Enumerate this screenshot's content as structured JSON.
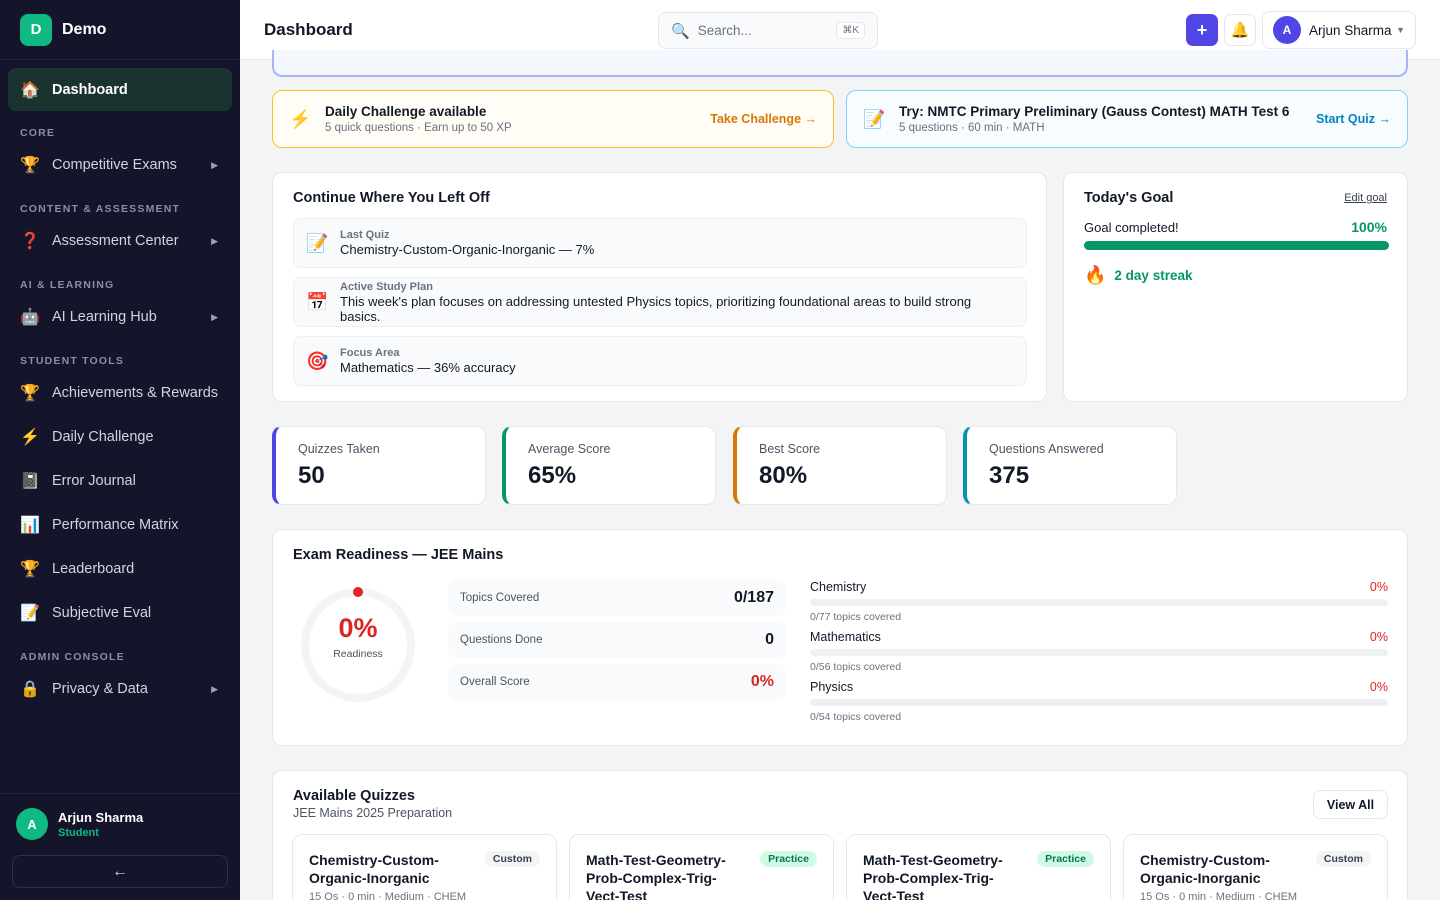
{
  "brand": {
    "logo_letter": "D",
    "name": "Demo"
  },
  "sidebar": {
    "active": {
      "icon": "home-icon",
      "label": "Dashboard"
    },
    "sections": [
      {
        "label": "CORE",
        "items": [
          {
            "icon": "trophy-icon",
            "label": "Competitive Exams",
            "expandable": true
          }
        ]
      },
      {
        "label": "CONTENT & ASSESSMENT",
        "items": [
          {
            "icon": "question-icon",
            "label": "Assessment Center",
            "expandable": true
          }
        ]
      },
      {
        "label": "AI & LEARNING",
        "items": [
          {
            "icon": "robot-icon",
            "label": "AI Learning Hub",
            "expandable": true
          }
        ]
      },
      {
        "label": "STUDENT TOOLS",
        "items": [
          {
            "icon": "trophy-icon",
            "label": "Achievements & Rewards"
          },
          {
            "icon": "lightning-icon",
            "label": "Daily Challenge"
          },
          {
            "icon": "notebook-icon",
            "label": "Error Journal"
          },
          {
            "icon": "bar-chart-icon",
            "label": "Performance Matrix"
          },
          {
            "icon": "trophy-icon",
            "label": "Leaderboard"
          },
          {
            "icon": "memo-icon",
            "label": "Subjective Eval"
          }
        ]
      },
      {
        "label": "ADMIN CONSOLE",
        "items": [
          {
            "icon": "lock-icon",
            "label": "Privacy & Data",
            "expandable": true
          }
        ]
      }
    ],
    "user": {
      "initial": "A",
      "name": "Arjun Sharma",
      "role": "Student"
    },
    "collapse_label": "←"
  },
  "header": {
    "title": "Dashboard",
    "search_placeholder": "Search...",
    "search_shortcut": "⌘K",
    "add_label": "+",
    "user_initial": "A",
    "user_name": "Arjun Sharma"
  },
  "cta": {
    "daily": {
      "title": "Daily Challenge available",
      "subtitle": "5 quick questions · Earn up to 50 XP",
      "action": "Take Challenge →"
    },
    "quiz": {
      "title": "Try: NMTC Primary Preliminary (Gauss Contest) MATH Test 6",
      "subtitle": "5 questions · 60 min · MATH",
      "action": "Start Quiz →"
    }
  },
  "resume": {
    "title": "Continue Where You Left Off",
    "items": [
      {
        "icon": "memo-icon",
        "label": "Last Quiz",
        "text": "Chemistry-Custom-Organic-Inorganic — 7%"
      },
      {
        "icon": "calendar-icon",
        "label": "Active Study Plan",
        "text": "This week's plan focuses on addressing untested Physics topics, prioritizing foundational areas to build strong basics."
      },
      {
        "icon": "target-icon",
        "label": "Focus Area",
        "text": "Mathematics — 36% accuracy"
      }
    ]
  },
  "goal": {
    "title": "Today's Goal",
    "edit_label": "Edit goal",
    "status": "Goal completed!",
    "percent_label": "100%",
    "progress": 1.0,
    "streak": "2 day streak"
  },
  "stats": [
    {
      "label": "Quizzes Taken",
      "value": "50",
      "color": "#4f46e5"
    },
    {
      "label": "Average Score",
      "value": "65%",
      "color": "#059669"
    },
    {
      "label": "Best Score",
      "value": "80%",
      "color": "#d97706"
    },
    {
      "label": "Questions Answered",
      "value": "375",
      "color": "#0891b2"
    }
  ],
  "readiness": {
    "title": "Exam Readiness — JEE Mains",
    "percent_label": "0%",
    "percent": 0,
    "caption": "Readiness",
    "metrics": [
      {
        "label": "Topics Covered",
        "value": "0/187"
      },
      {
        "label": "Questions Done",
        "value": "0"
      },
      {
        "label": "Overall Score",
        "value": "0%"
      }
    ],
    "subjects": [
      {
        "name": "Chemistry",
        "pct_label": "0%",
        "pct": 0,
        "covered": "0/77 topics covered"
      },
      {
        "name": "Mathematics",
        "pct_label": "0%",
        "pct": 0,
        "covered": "0/56 topics covered"
      },
      {
        "name": "Physics",
        "pct_label": "0%",
        "pct": 0,
        "covered": "0/54 topics covered"
      }
    ]
  },
  "quizzes": {
    "title": "Available Quizzes",
    "subtitle": "JEE Mains 2025 Preparation",
    "view_all": "View All",
    "items": [
      {
        "title": "Chemistry-Custom-Organic-Inorganic",
        "badge": "Custom",
        "meta": "15 Qs · 0 min · Medium · CHEM"
      },
      {
        "title": "Math-Test-Geometry-Prob-Complex-Trig-Vect-Test",
        "badge": "Practice",
        "meta": ""
      },
      {
        "title": "Math-Test-Geometry-Prob-Complex-Trig-Vect-Test",
        "badge": "Practice",
        "meta": ""
      },
      {
        "title": "Chemistry-Custom-Organic-Inorganic",
        "badge": "Custom",
        "meta": "15 Qs · 0 min · Medium · CHEM"
      }
    ]
  },
  "colors": {
    "primary": "#4f46e5",
    "success": "#059669",
    "danger": "#dc2626",
    "warning": "#d97706",
    "info": "#0284c7",
    "sidebar_bg": "#14142b"
  }
}
